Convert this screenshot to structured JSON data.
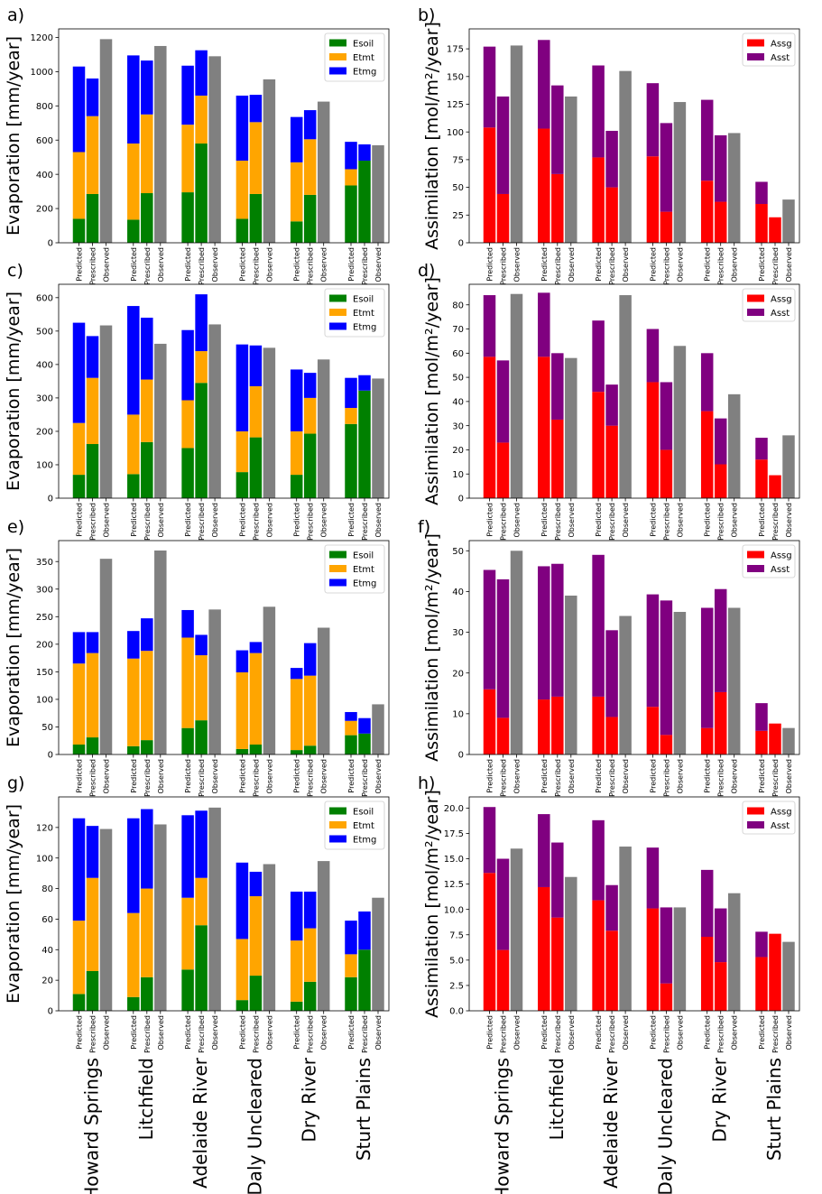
{
  "sites": [
    "Howard Springs",
    "Litchfield",
    "Adelaide River",
    "Daly Uncleared",
    "Dry River",
    "Sturt Plains"
  ],
  "bar_labels": [
    "Predicted",
    "Prescribed",
    "Observed"
  ],
  "colors": {
    "Esoil": "#008000",
    "Etmt": "#ffa500",
    "Etmg": "#0000ff",
    "Assg": "#ff0000",
    "Asst": "#800080",
    "Observed": "#808080"
  },
  "chart_data": [
    {
      "panel": "a)",
      "type": "bar",
      "stacked": true,
      "ylabel": "Evaporation [mm/year]",
      "ylim": [
        0,
        1250
      ],
      "yticks": [
        0,
        200,
        400,
        600,
        800,
        1000,
        1200
      ],
      "legend": [
        "Esoil",
        "Etmt",
        "Etmg"
      ],
      "legend_loc": "top-right",
      "groups": [
        {
          "site": "Howard Springs",
          "predicted": [
            140,
            390,
            500
          ],
          "prescribed": [
            285,
            455,
            220
          ],
          "observed": 1190
        },
        {
          "site": "Litchfield",
          "predicted": [
            135,
            445,
            515
          ],
          "prescribed": [
            290,
            460,
            315
          ],
          "observed": 1150
        },
        {
          "site": "Adelaide River",
          "predicted": [
            295,
            395,
            345
          ],
          "prescribed": [
            580,
            280,
            265
          ],
          "observed": 1090
        },
        {
          "site": "Daly Uncleared",
          "predicted": [
            140,
            340,
            380
          ],
          "prescribed": [
            285,
            420,
            160
          ],
          "observed": 955
        },
        {
          "site": "Dry River",
          "predicted": [
            125,
            345,
            265
          ],
          "prescribed": [
            280,
            325,
            170
          ],
          "observed": 825
        },
        {
          "site": "Sturt Plains",
          "predicted": [
            335,
            95,
            160
          ],
          "prescribed": [
            480,
            0,
            95
          ],
          "observed": 570
        }
      ]
    },
    {
      "panel": "b)",
      "type": "bar",
      "stacked": true,
      "ylabel": "Assimilation [mol/m²/year]",
      "ylim": [
        0,
        193
      ],
      "yticks": [
        0,
        25,
        50,
        75,
        100,
        125,
        150,
        175
      ],
      "legend": [
        "Assg",
        "Asst"
      ],
      "legend_loc": "top-right",
      "groups": [
        {
          "site": "Howard Springs",
          "predicted": [
            104,
            73
          ],
          "prescribed": [
            44,
            88
          ],
          "observed": 178
        },
        {
          "site": "Litchfield",
          "predicted": [
            103,
            80
          ],
          "prescribed": [
            62,
            80
          ],
          "observed": 132
        },
        {
          "site": "Adelaide River",
          "predicted": [
            77,
            83
          ],
          "prescribed": [
            50,
            51
          ],
          "observed": 155
        },
        {
          "site": "Daly Uncleared",
          "predicted": [
            78,
            66
          ],
          "prescribed": [
            28,
            80
          ],
          "observed": 127
        },
        {
          "site": "Dry River",
          "predicted": [
            56,
            73
          ],
          "prescribed": [
            37,
            60
          ],
          "observed": 99
        },
        {
          "site": "Sturt Plains",
          "predicted": [
            35,
            20
          ],
          "prescribed": [
            23,
            0
          ],
          "observed": 39
        }
      ]
    },
    {
      "panel": "c)",
      "type": "bar",
      "stacked": true,
      "ylabel": "Evaporation [mm/year]",
      "ylim": [
        0,
        640
      ],
      "yticks": [
        0,
        100,
        200,
        300,
        400,
        500,
        600
      ],
      "legend": [
        "Esoil",
        "Etmt",
        "Etmg"
      ],
      "legend_loc": "top-right",
      "groups": [
        {
          "site": "Howard Springs",
          "predicted": [
            70,
            155,
            300
          ],
          "prescribed": [
            162,
            198,
            125
          ],
          "observed": 517
        },
        {
          "site": "Litchfield",
          "predicted": [
            72,
            178,
            325
          ],
          "prescribed": [
            168,
            187,
            185
          ],
          "observed": 462
        },
        {
          "site": "Adelaide River",
          "predicted": [
            150,
            143,
            210
          ],
          "prescribed": [
            345,
            95,
            170
          ],
          "observed": 520
        },
        {
          "site": "Daly Uncleared",
          "predicted": [
            78,
            122,
            260
          ],
          "prescribed": [
            182,
            153,
            122
          ],
          "observed": 450
        },
        {
          "site": "Dry River",
          "predicted": [
            70,
            130,
            185
          ],
          "prescribed": [
            193,
            107,
            75
          ],
          "observed": 415
        },
        {
          "site": "Sturt Plains",
          "predicted": [
            222,
            48,
            90
          ],
          "prescribed": [
            322,
            0,
            46
          ],
          "observed": 358
        }
      ]
    },
    {
      "panel": "d)",
      "type": "bar",
      "stacked": true,
      "ylabel": "Assimilation [mol/m²/year]",
      "ylim": [
        0,
        88.5
      ],
      "yticks": [
        0,
        10,
        20,
        30,
        40,
        50,
        60,
        70,
        80
      ],
      "legend": [
        "Assg",
        "Asst"
      ],
      "legend_loc": "top-right",
      "groups": [
        {
          "site": "Howard Springs",
          "predicted": [
            58.5,
            25.5
          ],
          "prescribed": [
            23,
            34
          ],
          "observed": 84.5
        },
        {
          "site": "Litchfield",
          "predicted": [
            58.5,
            26.5
          ],
          "prescribed": [
            32.5,
            27.5
          ],
          "observed": 58
        },
        {
          "site": "Adelaide River",
          "predicted": [
            44,
            29.5
          ],
          "prescribed": [
            30,
            17
          ],
          "observed": 84
        },
        {
          "site": "Daly Uncleared",
          "predicted": [
            48,
            22
          ],
          "prescribed": [
            20,
            28
          ],
          "observed": 63
        },
        {
          "site": "Dry River",
          "predicted": [
            36,
            24
          ],
          "prescribed": [
            14,
            19
          ],
          "observed": 43
        },
        {
          "site": "Sturt Plains",
          "predicted": [
            16,
            9
          ],
          "prescribed": [
            9.5,
            0
          ],
          "observed": 26
        }
      ]
    },
    {
      "panel": "e)",
      "type": "bar",
      "stacked": true,
      "ylabel": "Evaporation [mm/year]",
      "ylim": [
        0,
        388
      ],
      "yticks": [
        0,
        50,
        100,
        150,
        200,
        250,
        300,
        350
      ],
      "legend": [
        "Esoil",
        "Etmt",
        "Etmg"
      ],
      "legend_loc": "top-right",
      "groups": [
        {
          "site": "Howard Springs",
          "predicted": [
            18,
            147,
            57
          ],
          "prescribed": [
            31,
            153,
            38
          ],
          "observed": 355
        },
        {
          "site": "Litchfield",
          "predicted": [
            15,
            159,
            50
          ],
          "prescribed": [
            26,
            162,
            59
          ],
          "observed": 370
        },
        {
          "site": "Adelaide River",
          "predicted": [
            48,
            164,
            50
          ],
          "prescribed": [
            62,
            118,
            37
          ],
          "observed": 263
        },
        {
          "site": "Daly Uncleared",
          "predicted": [
            10,
            139,
            40
          ],
          "prescribed": [
            18,
            166,
            20
          ],
          "observed": 268
        },
        {
          "site": "Dry River",
          "predicted": [
            8,
            129,
            20
          ],
          "prescribed": [
            16,
            127,
            59
          ],
          "observed": 230
        },
        {
          "site": "Sturt Plains",
          "predicted": [
            35,
            26,
            16
          ],
          "prescribed": [
            38,
            0,
            28
          ],
          "observed": 91
        }
      ]
    },
    {
      "panel": "f)",
      "type": "bar",
      "stacked": true,
      "ylabel": "Assimilation [mol/m²/year]",
      "ylim": [
        0,
        52.5
      ],
      "yticks": [
        0,
        10,
        20,
        30,
        40,
        50
      ],
      "legend": [
        "Assg",
        "Asst"
      ],
      "legend_loc": "top-right",
      "groups": [
        {
          "site": "Howard Springs",
          "predicted": [
            16,
            29.3
          ],
          "prescribed": [
            9,
            34
          ],
          "observed": 50
        },
        {
          "site": "Litchfield",
          "predicted": [
            13.5,
            32.7
          ],
          "prescribed": [
            14.2,
            32.6
          ],
          "observed": 39
        },
        {
          "site": "Adelaide River",
          "predicted": [
            14.2,
            34.8
          ],
          "prescribed": [
            9.2,
            21.3
          ],
          "observed": 34
        },
        {
          "site": "Daly Uncleared",
          "predicted": [
            11.7,
            27.6
          ],
          "prescribed": [
            4.8,
            33
          ],
          "observed": 35
        },
        {
          "site": "Dry River",
          "predicted": [
            6.5,
            29.5
          ],
          "prescribed": [
            15.3,
            25.3
          ],
          "observed": 36
        },
        {
          "site": "Sturt Plains",
          "predicted": [
            5.8,
            6.8
          ],
          "prescribed": [
            7.6,
            0
          ],
          "observed": 6.5
        }
      ]
    },
    {
      "panel": "g)",
      "type": "bar",
      "stacked": true,
      "ylabel": "Evaporation [mm/year]",
      "ylim": [
        0,
        140
      ],
      "yticks": [
        0,
        20,
        40,
        60,
        80,
        100,
        120
      ],
      "legend": [
        "Esoil",
        "Etmt",
        "Etmg"
      ],
      "legend_loc": "top-right",
      "groups": [
        {
          "site": "Howard Springs",
          "predicted": [
            11,
            48,
            67
          ],
          "prescribed": [
            26,
            61,
            34
          ],
          "observed": 119
        },
        {
          "site": "Litchfield",
          "predicted": [
            9,
            55,
            62
          ],
          "prescribed": [
            22,
            58,
            52
          ],
          "observed": 122
        },
        {
          "site": "Adelaide River",
          "predicted": [
            27,
            47,
            54
          ],
          "prescribed": [
            56,
            31,
            44
          ],
          "observed": 133
        },
        {
          "site": "Daly Uncleared",
          "predicted": [
            7,
            40,
            50
          ],
          "prescribed": [
            23,
            52,
            16
          ],
          "observed": 96
        },
        {
          "site": "Dry River",
          "predicted": [
            6,
            40,
            32
          ],
          "prescribed": [
            19,
            35,
            24
          ],
          "observed": 98
        },
        {
          "site": "Sturt Plains",
          "predicted": [
            22,
            15,
            22
          ],
          "prescribed": [
            40,
            0,
            25
          ],
          "observed": 74
        }
      ]
    },
    {
      "panel": "h)",
      "type": "bar",
      "stacked": true,
      "ylabel": "Assimilation [mol/m²/year]",
      "ylim": [
        0,
        21.1
      ],
      "yticks": [
        "0.0",
        "2.5",
        "5.0",
        "7.5",
        "10.0",
        "12.5",
        "15.0",
        "17.5",
        "20.0"
      ],
      "legend": [
        "Assg",
        "Asst"
      ],
      "legend_loc": "top-right",
      "groups": [
        {
          "site": "Howard Springs",
          "predicted": [
            13.6,
            6.5
          ],
          "prescribed": [
            6,
            9
          ],
          "observed": 16
        },
        {
          "site": "Litchfield",
          "predicted": [
            12.2,
            7.2
          ],
          "prescribed": [
            9.2,
            7.4
          ],
          "observed": 13.2
        },
        {
          "site": "Adelaide River",
          "predicted": [
            10.9,
            7.9
          ],
          "prescribed": [
            7.9,
            4.5
          ],
          "observed": 16.2
        },
        {
          "site": "Daly Uncleared",
          "predicted": [
            10.1,
            6
          ],
          "prescribed": [
            2.7,
            7.5
          ],
          "observed": 10.2
        },
        {
          "site": "Dry River",
          "predicted": [
            7.3,
            6.6
          ],
          "prescribed": [
            4.8,
            5.3
          ],
          "observed": 11.6
        },
        {
          "site": "Sturt Plains",
          "predicted": [
            5.3,
            2.5
          ],
          "prescribed": [
            7.6,
            0
          ],
          "observed": 6.8
        }
      ]
    }
  ]
}
